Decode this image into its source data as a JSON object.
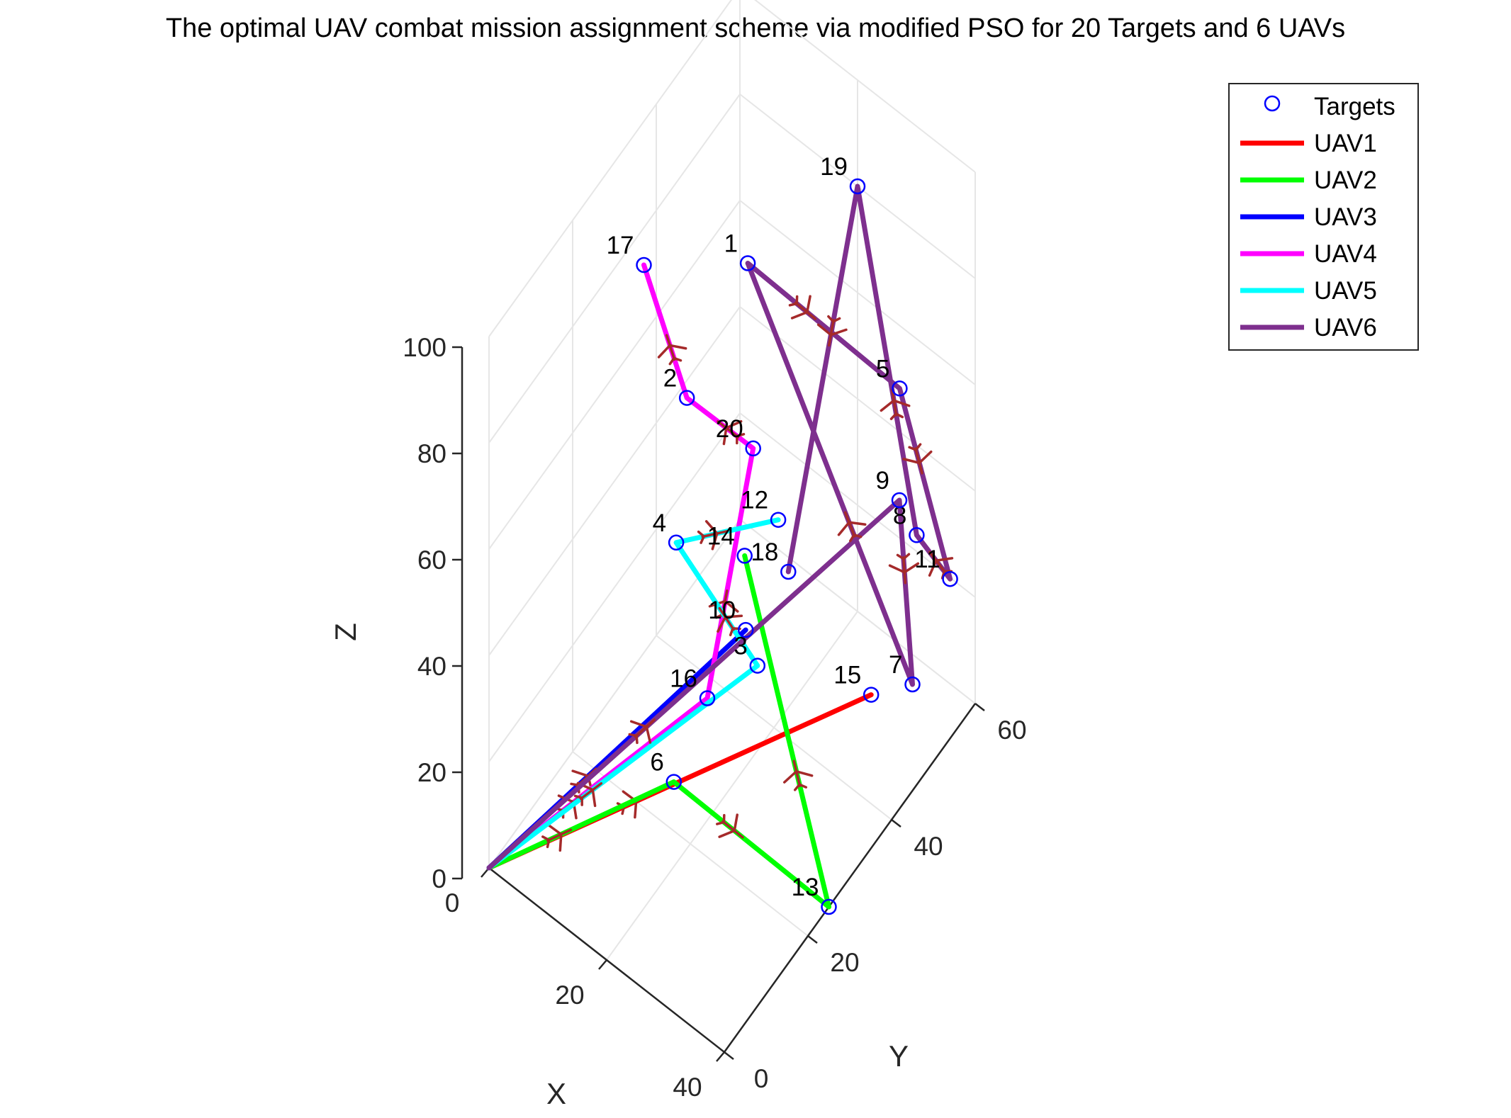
{
  "chart_data": {
    "type": "line3d",
    "title": "The optimal UAV combat mission assignment scheme via modified PSO for 20 Targets and 6 UAVs",
    "xlabel": "X",
    "ylabel": "Y",
    "zlabel": "Z",
    "xlim": [
      0,
      40
    ],
    "ylim": [
      0,
      60
    ],
    "zlim": [
      0,
      100
    ],
    "xticks": [
      "0",
      "20",
      "40"
    ],
    "yticks": [
      "0",
      "20",
      "40",
      "60"
    ],
    "zticks": [
      "0",
      "20",
      "40",
      "60",
      "80",
      "100"
    ],
    "grid": true,
    "legend_position": "top-right",
    "legend": [
      "Targets",
      "UAV1",
      "UAV2",
      "UAV3",
      "UAV4",
      "UAV5",
      "UAV6"
    ],
    "base": {
      "x": 0,
      "y": 0,
      "z": 0
    },
    "targets": [
      {
        "id": "1",
        "x": 12,
        "y": 45,
        "z": 75
      },
      {
        "id": "2",
        "x": 18,
        "y": 22,
        "z": 80
      },
      {
        "id": "3",
        "x": 30,
        "y": 22,
        "z": 40
      },
      {
        "id": "4",
        "x": 24,
        "y": 11,
        "z": 70
      },
      {
        "id": "5",
        "x": 30,
        "y": 56,
        "z": 55
      },
      {
        "id": "6",
        "x": 30,
        "y": 2,
        "z": 40
      },
      {
        "id": "7",
        "x": 40,
        "y": 45,
        "z": 20
      },
      {
        "id": "8",
        "x": 40,
        "y": 46,
        "z": 47
      },
      {
        "id": "9",
        "x": 20,
        "y": 70,
        "z": 10
      },
      {
        "id": "10",
        "x": 28,
        "y": 22,
        "z": 45
      },
      {
        "id": "11",
        "x": 40,
        "y": 54,
        "z": 30
      },
      {
        "id": "12",
        "x": 25,
        "y": 34,
        "z": 50
      },
      {
        "id": "13",
        "x": 40,
        "y": 25,
        "z": 0
      },
      {
        "id": "14",
        "x": 20,
        "y": 33,
        "z": 40
      },
      {
        "id": "15",
        "x": 28,
        "y": 52,
        "z": 0
      },
      {
        "id": "16",
        "x": 30,
        "y": 10,
        "z": 47
      },
      {
        "id": "17",
        "x": 5,
        "y": 30,
        "z": 85
      },
      {
        "id": "18",
        "x": 26,
        "y": 35,
        "z": 40
      },
      {
        "id": "19",
        "x": 20,
        "y": 60,
        "z": 80
      },
      {
        "id": "20",
        "x": 25,
        "y": 28,
        "z": 70
      }
    ],
    "series": [
      {
        "name": "UAV1",
        "color": "#ff0000",
        "route": [
          "15"
        ]
      },
      {
        "name": "UAV2",
        "color": "#00ff00",
        "route": [
          "6",
          "13",
          "14"
        ]
      },
      {
        "name": "UAV3",
        "color": "#0000ff",
        "route": [
          "10"
        ]
      },
      {
        "name": "UAV4",
        "color": "#ff00ff",
        "route": [
          "16",
          "20",
          "2",
          "17"
        ]
      },
      {
        "name": "UAV5",
        "color": "#00ffff",
        "route": [
          "3",
          "4",
          "12"
        ]
      },
      {
        "name": "UAV6",
        "color": "#7e2f8e",
        "route": [
          "9",
          "7",
          "1",
          "5",
          "11",
          "8",
          "19",
          "18"
        ]
      }
    ]
  },
  "colors": {
    "target_marker": "#0000ff",
    "plane_marker": "#a52a2a",
    "grid": "#e6e6e6",
    "axis": "#262626"
  }
}
